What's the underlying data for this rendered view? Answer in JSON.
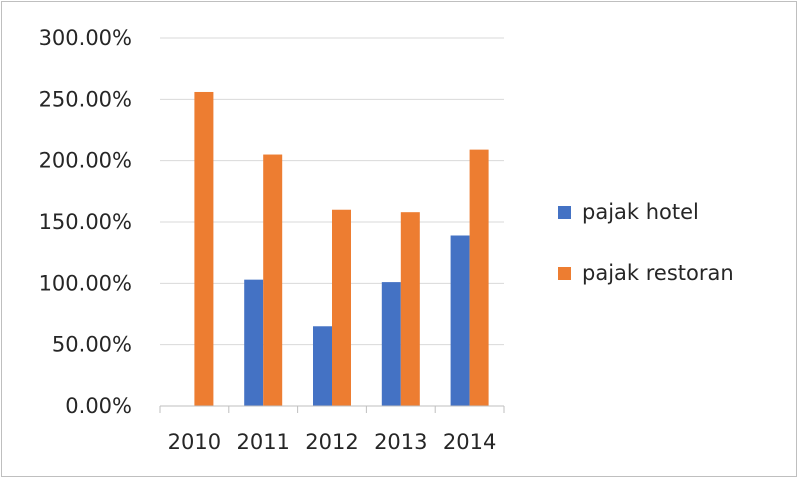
{
  "chart_data": {
    "type": "bar",
    "title": "",
    "xlabel": "",
    "ylabel": "",
    "categories": [
      "2010",
      "2011",
      "2012",
      "2013",
      "2014"
    ],
    "series": [
      {
        "name": "pajak hotel",
        "color": "#4472c4",
        "values": [
          0,
          103,
          65,
          101,
          139
        ]
      },
      {
        "name": "pajak restoran",
        "color": "#ed7d31",
        "values": [
          256,
          205,
          160,
          158,
          209
        ]
      }
    ],
    "ylim": [
      0,
      300
    ],
    "yticks": [
      "0.00%",
      "50.00%",
      "100.00%",
      "150.00%",
      "200.00%",
      "250.00%",
      "300.00%"
    ],
    "grid": true,
    "legend": "right"
  }
}
